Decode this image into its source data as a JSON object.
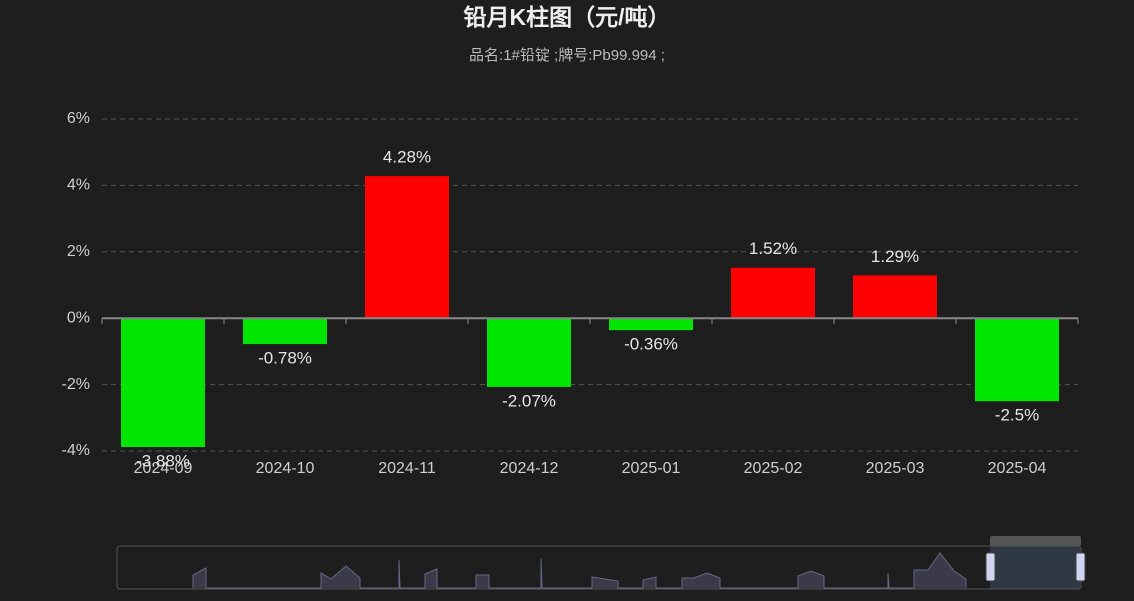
{
  "chart_data": {
    "type": "bar",
    "title": "铅月K柱图（元/吨）",
    "subtitle": "品名:1#铅锭 ;牌号:Pb99.994 ;",
    "categories": [
      "2024-09",
      "2024-10",
      "2024-11",
      "2024-12",
      "2025-01",
      "2025-02",
      "2025-03",
      "2025-04"
    ],
    "values": [
      -3.88,
      -0.78,
      4.28,
      -2.07,
      -0.36,
      1.52,
      1.29,
      -2.5
    ],
    "value_labels": [
      "-3.88%",
      "-0.78%",
      "4.28%",
      "-2.07%",
      "-0.36%",
      "1.52%",
      "1.29%",
      "-2.5%"
    ],
    "positive_color": "#ff0000",
    "negative_color": "#00e600",
    "ylim": [
      -4,
      6
    ],
    "yticks": [
      {
        "value": -4,
        "label": "-4%"
      },
      {
        "value": -2,
        "label": "-2%"
      },
      {
        "value": 0,
        "label": "0%"
      },
      {
        "value": 2,
        "label": "2%"
      },
      {
        "value": 4,
        "label": "4%"
      },
      {
        "value": 6,
        "label": "6%"
      }
    ],
    "grid": true
  }
}
